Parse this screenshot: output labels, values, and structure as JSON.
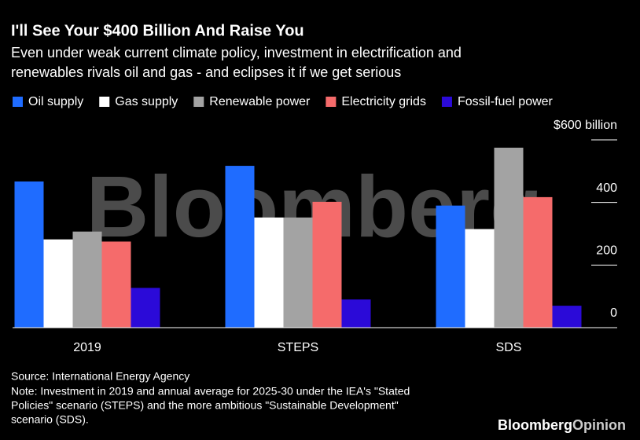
{
  "chart_data": {
    "type": "bar",
    "title": "I'll See Your $400 Billion And Raise You",
    "subtitle": [
      "Even under weak current climate policy, investment in electrification and",
      "renewables rivals oil and gas - and eclipses it if we get serious"
    ],
    "categories": [
      "2019",
      "STEPS",
      "SDS"
    ],
    "series": [
      {
        "name": "Oil supply",
        "color": "#1f6cff",
        "values": [
          467,
          517,
          390
        ]
      },
      {
        "name": "Gas supply",
        "color": "#ffffff",
        "values": [
          282,
          352,
          315
        ]
      },
      {
        "name": "Renewable power",
        "color": "#a3a3a3",
        "values": [
          307,
          352,
          575
        ]
      },
      {
        "name": "Electricity grids",
        "color": "#f56b6b",
        "values": [
          275,
          402,
          417
        ]
      },
      {
        "name": "Fossil-fuel power",
        "color": "#2b0ad8",
        "values": [
          127,
          90,
          70
        ]
      }
    ],
    "ylim": [
      0,
      600
    ],
    "yticks": [
      0,
      200,
      400,
      {
        "value": 600,
        "label": "$600 billion"
      }
    ],
    "source": "Source: International Energy Agency",
    "note": [
      "Note: Investment in 2019 and annual average for 2025-30 under the IEA's \"Stated",
      "Policies\" scenario (STEPS) and the more ambitious \"Sustainable Development\"",
      "scenario (SDS)."
    ],
    "watermark": "Bloomberg",
    "logo": [
      "Bloomberg",
      "Opinion"
    ]
  }
}
